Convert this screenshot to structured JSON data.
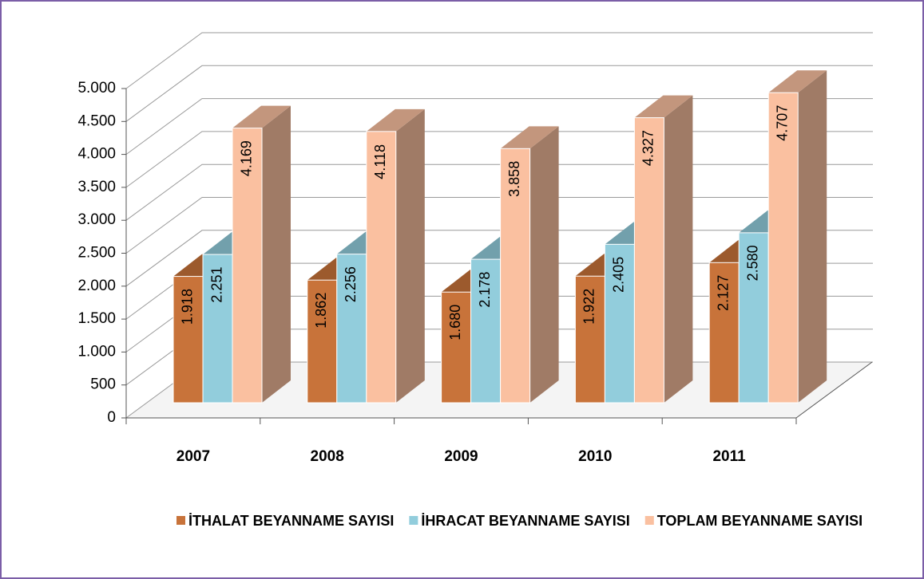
{
  "chart_data": {
    "type": "bar3d",
    "categories": [
      "2007",
      "2008",
      "2009",
      "2010",
      "2011"
    ],
    "series": [
      {
        "name": "İTHALAT BEYANNAME SAYISI",
        "color": "#c8733a",
        "values": [
          1918,
          1862,
          1680,
          1922,
          2127
        ],
        "value_labels": [
          "1.918",
          "1.862",
          "1.680",
          "1.922",
          "2.127"
        ]
      },
      {
        "name": "İHRACAT BEYANNAME SAYISI",
        "color": "#92cddc",
        "values": [
          2251,
          2256,
          2178,
          2405,
          2580
        ],
        "value_labels": [
          "2.251",
          "2.256",
          "2.178",
          "2.405",
          "2.580"
        ]
      },
      {
        "name": "TOPLAM BEYANNAME SAYISI",
        "color": "#fac0a0",
        "values": [
          4169,
          4118,
          3858,
          4327,
          4707
        ],
        "value_labels": [
          "4.169",
          "4.118",
          "3.858",
          "4.327",
          "4.707"
        ]
      }
    ],
    "ylim": [
      0,
      5000
    ],
    "yticks": [
      0,
      500,
      {
        "value": 1000,
        "label": "1.000"
      },
      {
        "value": 1500,
        "label": "1.500"
      },
      {
        "value": 2000,
        "label": "2.000"
      },
      {
        "value": 2500,
        "label": "2.500"
      },
      {
        "value": 3000,
        "label": "3.000"
      },
      {
        "value": 3500,
        "label": "3.500"
      },
      {
        "value": 4000,
        "label": "4.000"
      },
      {
        "value": 4500,
        "label": "4.500"
      },
      {
        "value": 5000,
        "label": "5.000"
      }
    ],
    "grid": true,
    "legend": "bottom"
  }
}
